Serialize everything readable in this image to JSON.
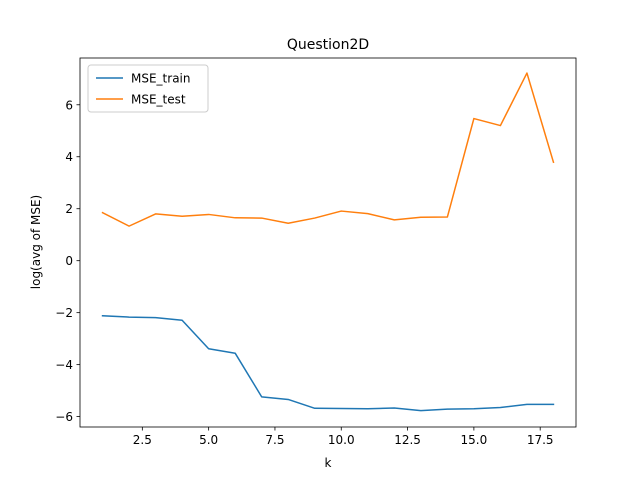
{
  "chart_data": {
    "type": "line",
    "title": "Question2D",
    "xlabel": "k",
    "ylabel": "log(avg of MSE)",
    "xlim": [
      0.15,
      18.85
    ],
    "ylim": [
      -6.4,
      7.8
    ],
    "xticks": [
      2.5,
      5.0,
      7.5,
      10.0,
      12.5,
      15.0,
      17.5
    ],
    "xtick_labels": [
      "2.5",
      "5.0",
      "7.5",
      "10.0",
      "12.5",
      "15.0",
      "17.5"
    ],
    "yticks": [
      -6,
      -4,
      -2,
      0,
      2,
      4,
      6
    ],
    "ytick_labels": [
      "−6",
      "−4",
      "−2",
      "0",
      "2",
      "4",
      "6"
    ],
    "grid": false,
    "legend_position": "top-left",
    "x": [
      1,
      2,
      3,
      4,
      5,
      6,
      7,
      8,
      9,
      10,
      11,
      12,
      13,
      14,
      15,
      16,
      17,
      18
    ],
    "series": [
      {
        "name": "MSE_train",
        "color": "#1f77b4",
        "values": [
          -2.12,
          -2.17,
          -2.19,
          -2.29,
          -3.39,
          -3.56,
          -5.24,
          -5.34,
          -5.68,
          -5.69,
          -5.7,
          -5.67,
          -5.77,
          -5.71,
          -5.7,
          -5.65,
          -5.53,
          -5.53
        ]
      },
      {
        "name": "MSE_test",
        "color": "#ff7f0e",
        "values": [
          1.85,
          1.33,
          1.8,
          1.71,
          1.78,
          1.65,
          1.64,
          1.44,
          1.64,
          1.91,
          1.81,
          1.57,
          1.67,
          1.68,
          5.47,
          5.2,
          7.22,
          3.79
        ]
      }
    ]
  }
}
